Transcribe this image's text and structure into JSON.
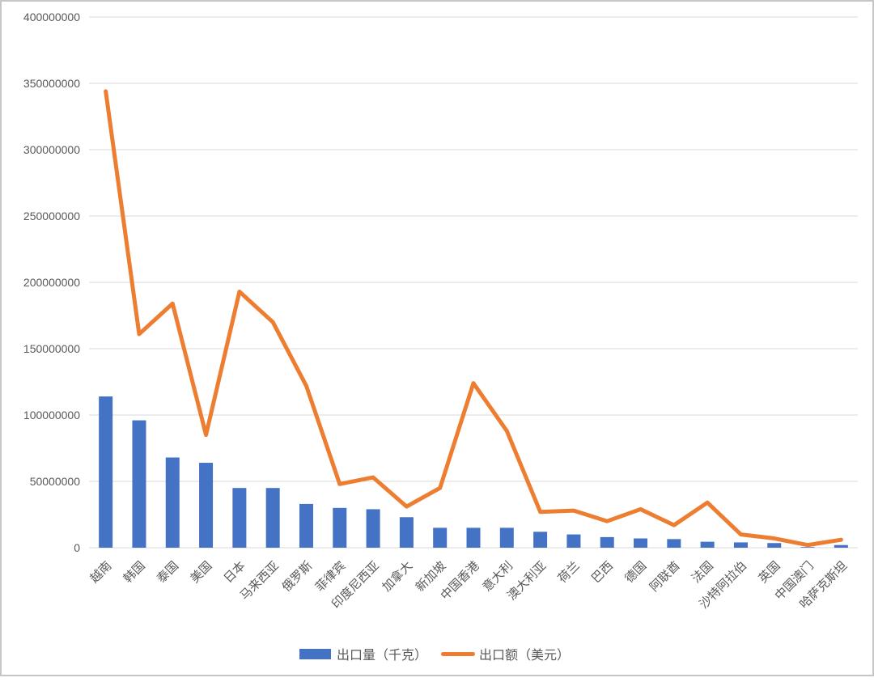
{
  "page": {
    "background": "#FFFFFF",
    "border_color": "#C6C6C6"
  },
  "chart_data": {
    "type": "combo-bar-line",
    "title": "",
    "categories": [
      "越南",
      "韩国",
      "泰国",
      "美国",
      "日本",
      "马来西亚",
      "俄罗斯",
      "菲律宾",
      "印度尼西亚",
      "加拿大",
      "新加坡",
      "中国香港",
      "意大利",
      "澳大利亚",
      "荷兰",
      "巴西",
      "德国",
      "阿联酋",
      "法国",
      "沙特阿拉伯",
      "英国",
      "中国澳门",
      "哈萨克斯坦"
    ],
    "series": [
      {
        "name": "出口量（千克）",
        "chart_type": "bar",
        "color": "#4472C4",
        "values": [
          114000000,
          96000000,
          68000000,
          64000000,
          45000000,
          45000000,
          33000000,
          30000000,
          29000000,
          23000000,
          15000000,
          15000000,
          15000000,
          12000000,
          10000000,
          8000000,
          7000000,
          6500000,
          4500000,
          4000000,
          3500000,
          500000,
          2000000
        ]
      },
      {
        "name": "出口额（美元）",
        "chart_type": "line",
        "color": "#ED7D31",
        "values": [
          344000000,
          161000000,
          184000000,
          85000000,
          193000000,
          170000000,
          122000000,
          48000000,
          53000000,
          31000000,
          45000000,
          124000000,
          88000000,
          27000000,
          28000000,
          20000000,
          29000000,
          17000000,
          34000000,
          10000000,
          7000000,
          2000000,
          6000000
        ]
      }
    ],
    "y_axis": {
      "min": 0,
      "max": 400000000,
      "step": 50000000,
      "tick_labels": [
        "0",
        "50000000",
        "100000000",
        "150000000",
        "200000000",
        "250000000",
        "300000000",
        "350000000",
        "400000000"
      ]
    },
    "x_axis": {
      "label_rotation_deg": -45
    },
    "grid": true,
    "grid_color": "#D9D9D9",
    "axis_text_color": "#595959",
    "legend_position": "bottom-center"
  }
}
